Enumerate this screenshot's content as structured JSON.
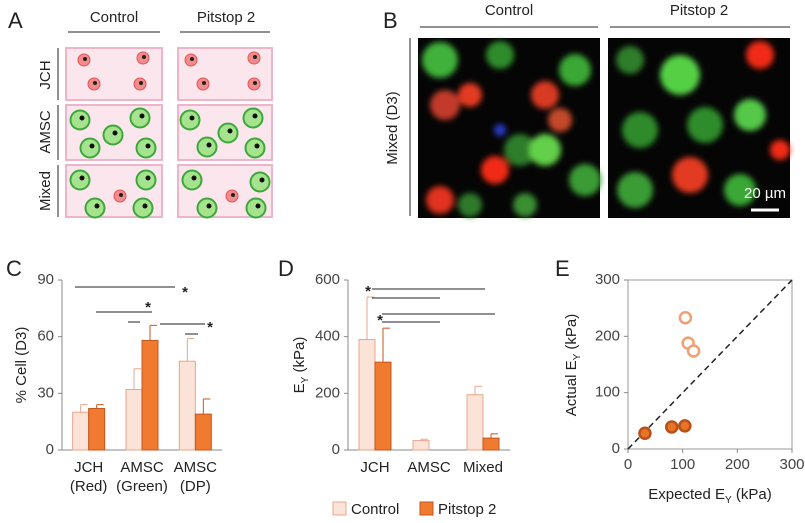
{
  "panel_a": {
    "label": "A",
    "columns": [
      "Control",
      "Pitstop 2"
    ],
    "rows": [
      "JCH",
      "AMSC",
      "Mixed"
    ]
  },
  "panel_b": {
    "label": "B",
    "columns": [
      "Control",
      "Pitstop 2"
    ],
    "row_label": "Mixed (D3)",
    "scale_bar": "20 µm"
  },
  "chart_data": [
    {
      "type": "bar",
      "panel_label": "C",
      "y_label": "% Cell (D3)",
      "categories": [
        "JCH\n(Red)",
        "AMSC\n(Green)",
        "AMSC\n(DP)"
      ],
      "series": [
        {
          "color": "#fce3d8",
          "values": [
            20,
            32,
            47
          ],
          "errors": [
            4,
            11,
            12
          ]
        },
        {
          "color": "#f07a30",
          "values": [
            22,
            58,
            19
          ],
          "errors": [
            2,
            8,
            8
          ]
        }
      ],
      "ylim": [
        0,
        90
      ],
      "yticks": [
        0,
        30,
        60,
        90
      ],
      "annotations": [
        "*",
        "*",
        "*"
      ]
    },
    {
      "type": "bar",
      "panel_label": "D",
      "y_label": [
        "E",
        "Y",
        " (kPa)"
      ],
      "categories": [
        "JCH",
        "AMSC",
        "Mixed"
      ],
      "series": [
        {
          "name": "Control",
          "color": "#fce3d8",
          "values": [
            390,
            33,
            195
          ],
          "errors": [
            150,
            5,
            30
          ]
        },
        {
          "name": "Pitstop 2",
          "color": "#f07a30",
          "values": [
            310,
            null,
            42
          ],
          "errors": [
            120,
            null,
            15
          ]
        }
      ],
      "ylim": [
        0,
        600
      ],
      "yticks": [
        0,
        200,
        400,
        600
      ],
      "annotations": [
        "*",
        "*"
      ]
    },
    {
      "type": "scatter",
      "panel_label": "E",
      "x_label": [
        "Expected E",
        "Y",
        " (kPa)"
      ],
      "y_label": [
        "Actual E",
        "Y",
        " (kPa)"
      ],
      "series": [
        {
          "color": "#e8742c",
          "filled": true,
          "x": [
            31,
            80,
            104
          ],
          "values": [
            28,
            39,
            41
          ]
        },
        {
          "color": "#f0a070",
          "filled": false,
          "x": [
            105,
            110,
            120
          ],
          "values": [
            233,
            188,
            174
          ]
        }
      ],
      "xlim": [
        0,
        300
      ],
      "ylim": [
        0,
        300
      ],
      "xticks": [
        0,
        100,
        200,
        300
      ],
      "yticks": [
        0,
        100,
        200,
        300
      ]
    }
  ]
}
